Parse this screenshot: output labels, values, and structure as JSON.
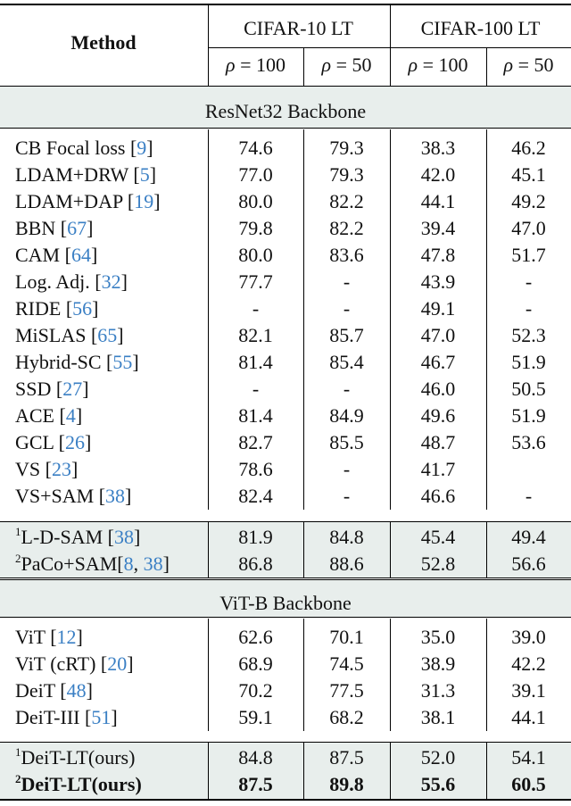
{
  "header": {
    "method_label": "Method",
    "groups": [
      "CIFAR-10 LT",
      "CIFAR-100 LT"
    ],
    "rho_symbol": "ρ",
    "sub_cols": [
      "= 100",
      "= 50",
      "= 100",
      "= 50"
    ]
  },
  "sections": [
    {
      "title": "ResNet32 Backbone",
      "rows": [
        {
          "pre": "",
          "name": "CB Focal loss [",
          "refs": [
            "9"
          ],
          "post": "]",
          "values": [
            "74.6",
            "79.3",
            "38.3",
            "46.2"
          ]
        },
        {
          "pre": "",
          "name": "LDAM+DRW [",
          "refs": [
            "5"
          ],
          "post": "]",
          "values": [
            "77.0",
            "79.3",
            "42.0",
            "45.1"
          ]
        },
        {
          "pre": "",
          "name": "LDAM+DAP [",
          "refs": [
            "19"
          ],
          "post": "]",
          "values": [
            "80.0",
            "82.2",
            "44.1",
            "49.2"
          ]
        },
        {
          "pre": "",
          "name": "BBN [",
          "refs": [
            "67"
          ],
          "post": "]",
          "values": [
            "79.8",
            "82.2",
            "39.4",
            "47.0"
          ]
        },
        {
          "pre": "",
          "name": "CAM [",
          "refs": [
            "64"
          ],
          "post": "]",
          "values": [
            "80.0",
            "83.6",
            "47.8",
            "51.7"
          ]
        },
        {
          "pre": "",
          "name": "Log. Adj. [",
          "refs": [
            "32"
          ],
          "post": "]",
          "values": [
            "77.7",
            "-",
            "43.9",
            "-"
          ]
        },
        {
          "pre": "",
          "name": "RIDE [",
          "refs": [
            "56"
          ],
          "post": "]",
          "values": [
            "-",
            "-",
            "49.1",
            "-"
          ]
        },
        {
          "pre": "",
          "name": "MiSLAS [",
          "refs": [
            "65"
          ],
          "post": "]",
          "values": [
            "82.1",
            "85.7",
            "47.0",
            "52.3"
          ]
        },
        {
          "pre": "",
          "name": "Hybrid-SC [",
          "refs": [
            "55"
          ],
          "post": "]",
          "values": [
            "81.4",
            "85.4",
            "46.7",
            "51.9"
          ]
        },
        {
          "pre": "",
          "name": "SSD [",
          "refs": [
            "27"
          ],
          "post": "]",
          "values": [
            "-",
            "-",
            "46.0",
            "50.5"
          ]
        },
        {
          "pre": "",
          "name": "ACE [",
          "refs": [
            "4"
          ],
          "post": "]",
          "values": [
            "81.4",
            "84.9",
            "49.6",
            "51.9"
          ]
        },
        {
          "pre": "",
          "name": "GCL [",
          "refs": [
            "26"
          ],
          "post": "]",
          "values": [
            "82.7",
            "85.5",
            "48.7",
            "53.6"
          ]
        },
        {
          "pre": "",
          "name": "VS [",
          "refs": [
            "23"
          ],
          "post": "]",
          "values": [
            "78.6",
            "-",
            "41.7",
            ""
          ]
        },
        {
          "pre": "",
          "name": "VS+SAM [",
          "refs": [
            "38"
          ],
          "post": "]",
          "values": [
            "82.4",
            "-",
            "46.6",
            "-"
          ]
        }
      ],
      "shaded_rows": [
        {
          "pre": "1",
          "name": "L-D-SAM [",
          "refs": [
            "38"
          ],
          "post": "]",
          "values": [
            "81.9",
            "84.8",
            "45.4",
            "49.4"
          ]
        },
        {
          "pre": "2",
          "name": "PaCo+SAM[",
          "refs": [
            "8",
            "38"
          ],
          "post": "]",
          "values": [
            "86.8",
            "88.6",
            "52.8",
            "56.6"
          ]
        }
      ]
    },
    {
      "title": "ViT-B Backbone",
      "rows": [
        {
          "pre": "",
          "name": "ViT  [",
          "refs": [
            "12"
          ],
          "post": "]",
          "values": [
            "62.6",
            "70.1",
            "35.0",
            "39.0"
          ]
        },
        {
          "pre": "",
          "name": "ViT (cRT)  [",
          "refs": [
            "20"
          ],
          "post": "]",
          "values": [
            "68.9",
            "74.5",
            "38.9",
            "42.2"
          ]
        },
        {
          "pre": "",
          "name": "DeiT  [",
          "refs": [
            "48"
          ],
          "post": "]",
          "values": [
            "70.2",
            "77.5",
            "31.3",
            "39.1"
          ]
        },
        {
          "pre": "",
          "name": "DeiT-III  [",
          "refs": [
            "51"
          ],
          "post": "]",
          "values": [
            "59.1",
            "68.2",
            "38.1",
            "44.1"
          ]
        }
      ],
      "shaded_rows": [
        {
          "pre": "1",
          "name": "DeiT-LT(ours)",
          "refs": [],
          "post": "",
          "values": [
            "84.8",
            "87.5",
            "52.0",
            "54.1"
          ],
          "bold": false
        },
        {
          "pre": "2",
          "name": "DeiT-LT(ours)",
          "refs": [],
          "post": "",
          "values": [
            "87.5",
            "89.8",
            "55.6",
            "60.5"
          ],
          "bold": true
        }
      ]
    }
  ]
}
